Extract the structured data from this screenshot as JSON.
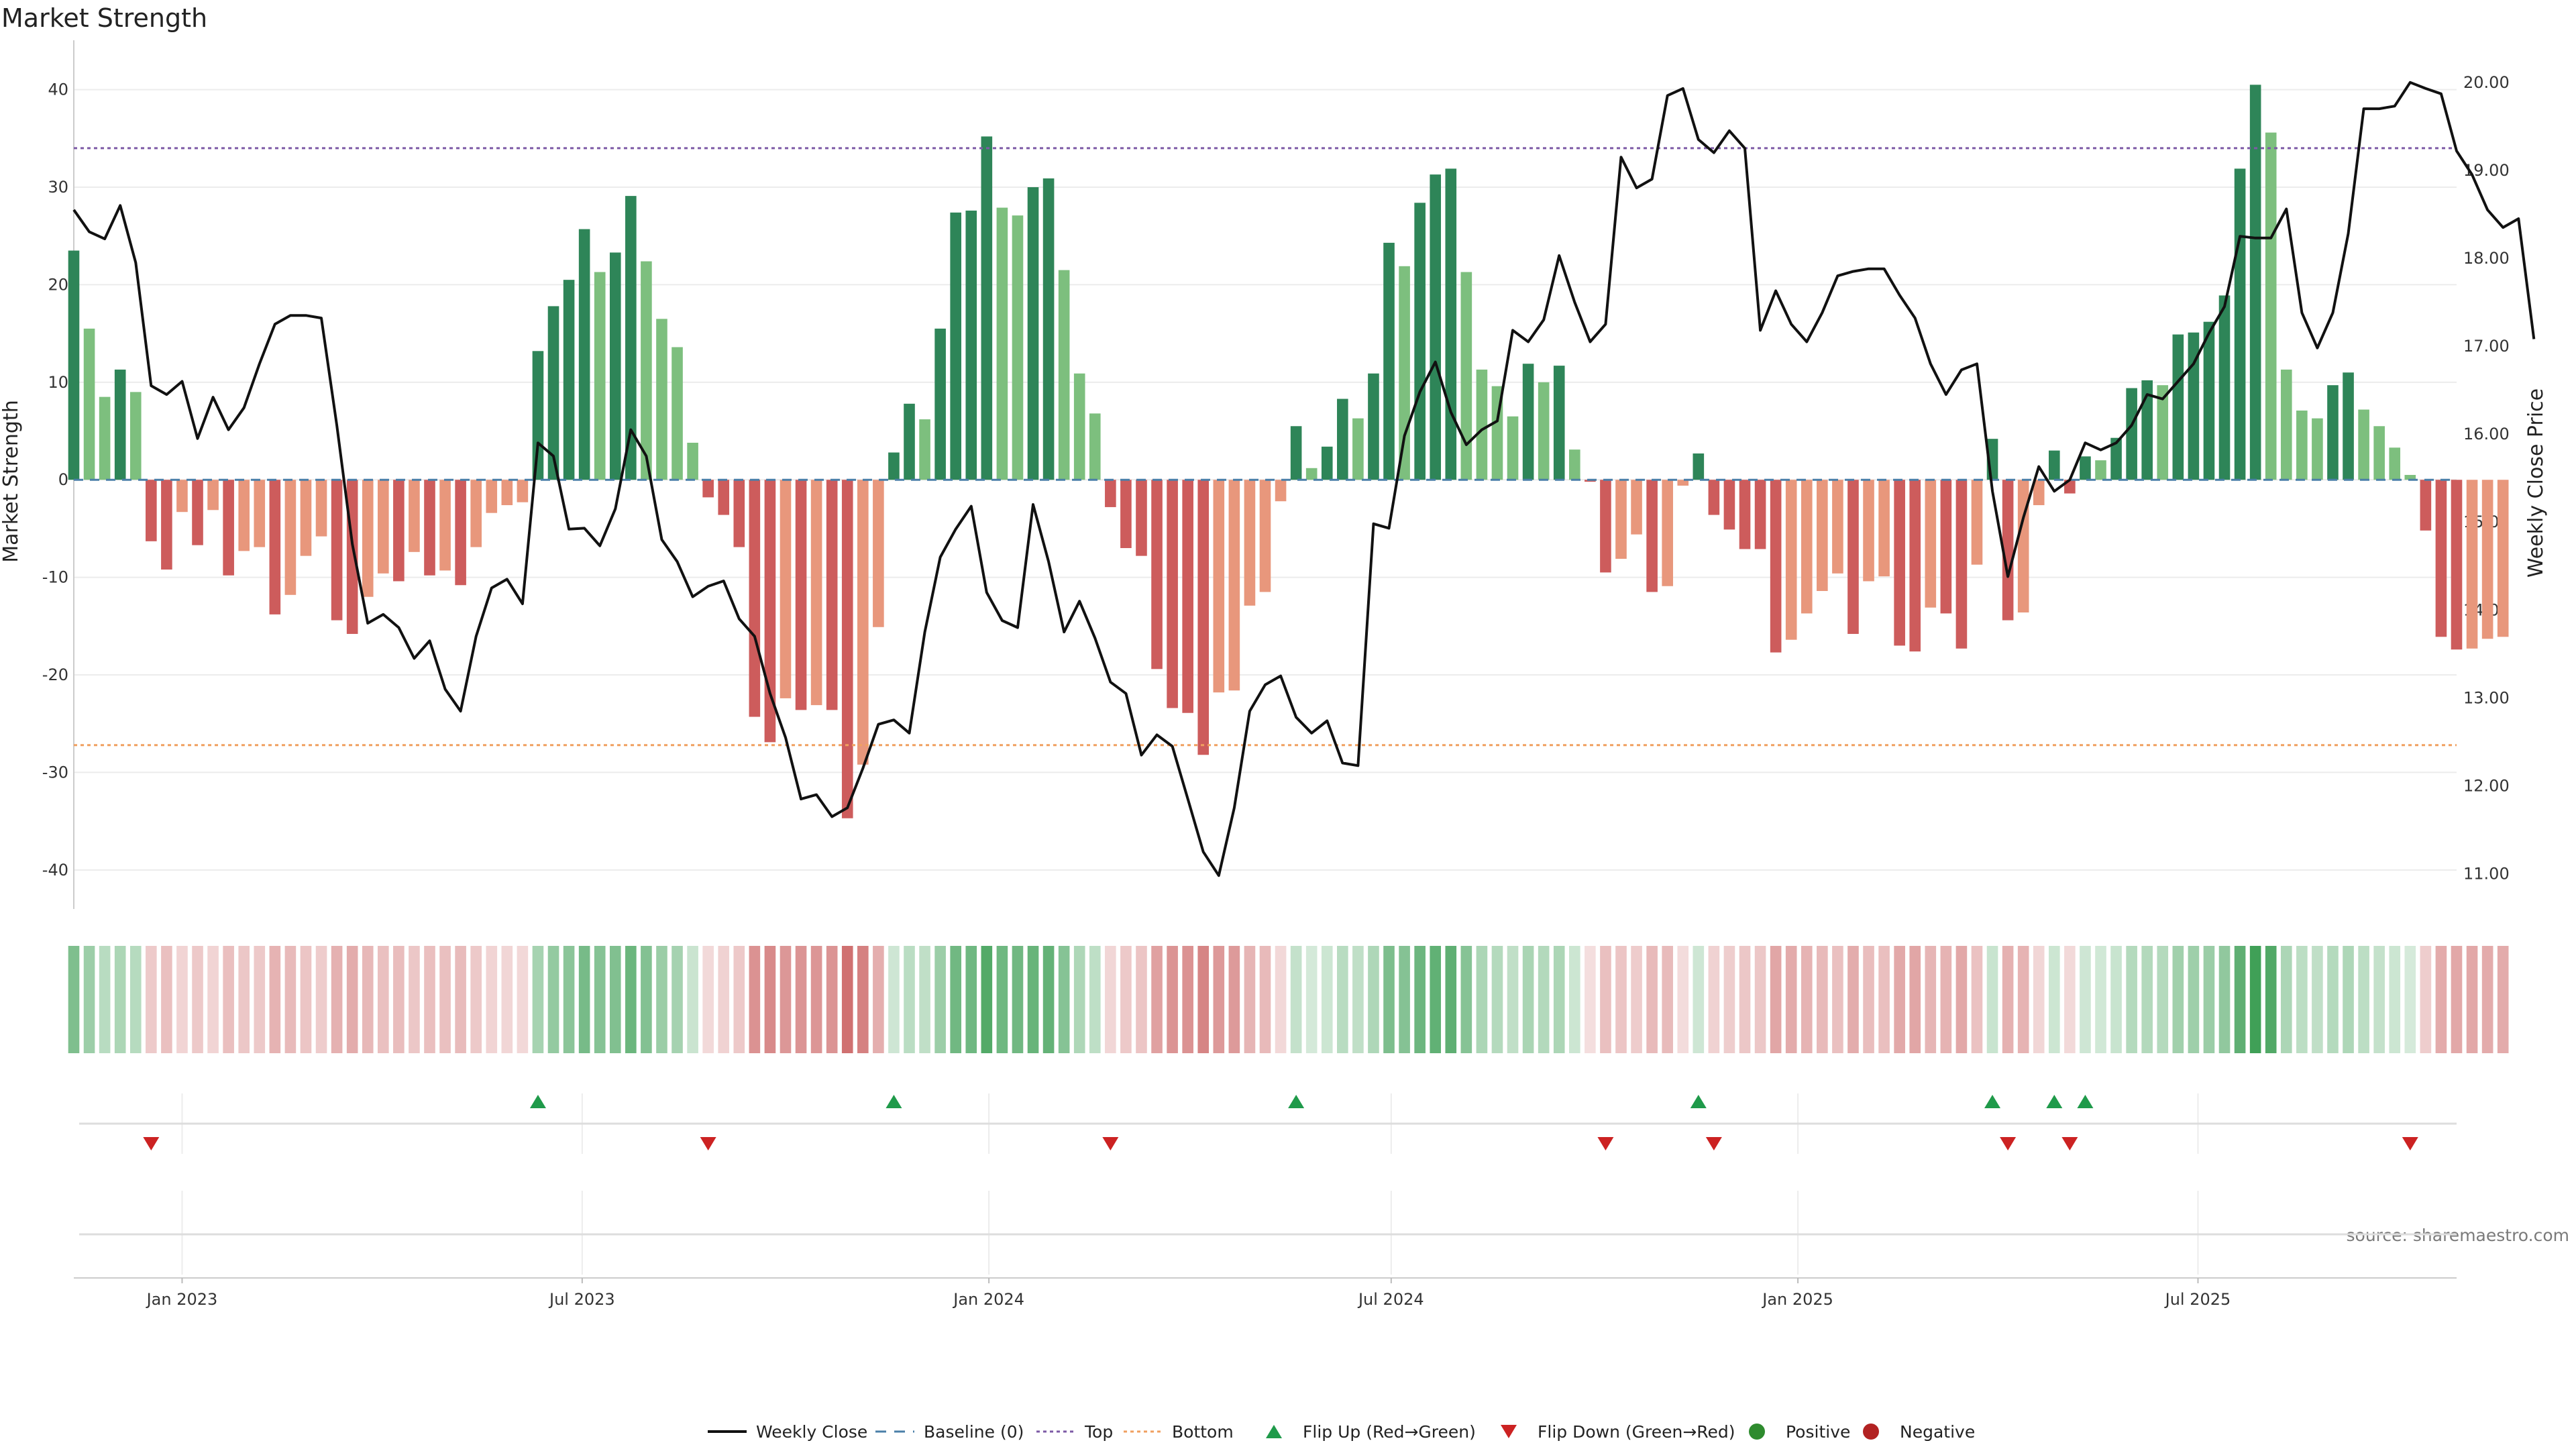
{
  "chart_data": {
    "type": "bar",
    "title": "Market Strength",
    "ylabel_left": "Market Strength",
    "ylabel_right": "Weekly Close Price",
    "source": "source: sharemaestro.com",
    "ylim": [
      -44,
      43
    ],
    "yticks": [
      40,
      30,
      20,
      10,
      0,
      -10,
      -20,
      -30,
      -40
    ],
    "ylim_right": [
      10.6,
      20.25
    ],
    "yticks_right": [
      "20.00",
      "19.00",
      "18.00",
      "17.00",
      "16.00",
      "15.00",
      "14.00",
      "13.00",
      "12.00",
      "11.00"
    ],
    "x_start": "2022-11-13",
    "x_end": "2025-10-26",
    "x_ticks": [
      {
        "date": "2023-01-01",
        "label": "Jan 2023"
      },
      {
        "date": "2023-07-01",
        "label": "Jul 2023"
      },
      {
        "date": "2024-01-01",
        "label": "Jan 2024"
      },
      {
        "date": "2024-07-01",
        "label": "Jul 2024"
      },
      {
        "date": "2025-01-01",
        "label": "Jan 2025"
      },
      {
        "date": "2025-07-01",
        "label": "Jul 2025"
      }
    ],
    "first_week": "2022-11-13",
    "week_step_days": 7,
    "strength": [
      23.5,
      15.5,
      8.5,
      11.3,
      9,
      -6.3,
      -9.2,
      -3.3,
      -6.7,
      -3.1,
      -9.8,
      -7.3,
      -6.9,
      -13.8,
      -11.8,
      -7.8,
      -5.8,
      -14.4,
      -15.8,
      -12,
      -9.6,
      -10.4,
      -7.4,
      -9.8,
      -9.3,
      -10.8,
      -6.9,
      -3.4,
      -2.6,
      -2.3,
      13.2,
      17.8,
      20.5,
      25.7,
      21.3,
      23.3,
      29.1,
      22.4,
      16.5,
      13.6,
      3.8,
      -1.8,
      -3.6,
      -6.9,
      -24.3,
      -26.9,
      -22.4,
      -23.6,
      -23.1,
      -23.6,
      -34.7,
      -29.2,
      -15.1,
      2.8,
      7.8,
      6.2,
      15.5,
      27.4,
      27.6,
      35.2,
      27.9,
      27.1,
      30,
      30.9,
      21.5,
      10.9,
      6.8,
      -2.8,
      -7,
      -7.8,
      -19.4,
      -23.4,
      -23.9,
      -28.2,
      -21.8,
      -21.6,
      -12.9,
      -11.5,
      -2.2,
      5.5,
      1.2,
      3.4,
      8.3,
      6.3,
      10.9,
      24.3,
      21.9,
      28.4,
      31.3,
      31.9,
      21.3,
      11.3,
      9.6,
      6.5,
      11.9,
      10,
      11.7,
      3.1,
      -0.2,
      -9.5,
      -8.1,
      -5.6,
      -11.5,
      -10.9,
      -0.6,
      2.7,
      -3.6,
      -5.1,
      -7.1,
      -7.1,
      -17.7,
      -16.4,
      -13.7,
      -11.4,
      -9.6,
      -15.8,
      -10.4,
      -9.9,
      -17,
      -17.6,
      -13.1,
      -13.7,
      -17.3,
      -8.7,
      4.2,
      -14.4,
      -13.6,
      -2.6,
      3,
      -1.4,
      2.4,
      2,
      4.3,
      9.4,
      10.2,
      9.7,
      14.9,
      15.1,
      16.2,
      18.9,
      31.9,
      40.5,
      35.6,
      11.3,
      7.1,
      6.3,
      9.7,
      11,
      7.2,
      5.5,
      3.3,
      0.5,
      -5.2,
      -16.1,
      -17.4,
      -17.3,
      -16.3,
      -16.1
    ],
    "weekly_close": [
      18.55,
      18.3,
      18.22,
      18.6,
      17.95,
      16.55,
      16.45,
      16.6,
      15.95,
      16.42,
      16.05,
      16.3,
      16.8,
      17.25,
      17.35,
      17.35,
      17.32,
      16.1,
      14.75,
      13.85,
      13.95,
      13.8,
      13.45,
      13.65,
      13.1,
      12.85,
      13.7,
      14.25,
      14.35,
      14.07,
      15.9,
      15.75,
      14.92,
      14.93,
      14.73,
      15.15,
      16.05,
      15.75,
      14.8,
      14.55,
      14.15,
      14.27,
      14.33,
      13.9,
      13.7,
      13.05,
      12.55,
      11.85,
      11.9,
      11.65,
      11.75,
      12.2,
      12.7,
      12.75,
      12.6,
      13.75,
      14.6,
      14.92,
      15.18,
      14.2,
      13.88,
      13.8,
      15.2,
      14.55,
      13.75,
      14.1,
      13.68,
      13.18,
      13.05,
      12.35,
      12.58,
      12.45,
      11.85,
      11.25,
      10.98,
      11.75,
      12.85,
      13.15,
      13.25,
      12.78,
      12.6,
      12.74,
      12.26,
      12.23,
      14.98,
      14.93,
      15.98,
      16.48,
      16.82,
      16.25,
      15.88,
      16.05,
      16.15,
      17.18,
      17.05,
      17.3,
      18.03,
      17.5,
      17.05,
      17.25,
      19.15,
      18.8,
      18.9,
      19.85,
      19.93,
      19.35,
      19.2,
      19.45,
      19.25,
      17.18,
      17.63,
      17.25,
      17.05,
      17.38,
      17.8,
      17.85,
      17.88,
      17.88,
      17.58,
      17.32,
      16.8,
      16.45,
      16.73,
      16.8,
      15.35,
      14.38,
      15.05,
      15.63,
      15.35,
      15.48,
      15.9,
      15.82,
      15.9,
      16.1,
      16.45,
      16.4,
      16.6,
      16.8,
      17.15,
      17.45,
      18.25,
      18.23,
      18.23,
      18.56,
      17.38,
      16.98,
      17.38,
      18.28,
      19.7,
      19.7,
      19.73,
      20.0,
      19.93,
      19.87,
      19.22,
      18.95,
      18.55,
      18.35,
      18.45,
      17.08
    ],
    "heat_strip": {
      "label": "strength-heat-strip",
      "note": "one cell per week, colour follows strength value"
    },
    "flip_up_weeks": [
      30,
      53,
      79,
      105,
      124,
      128,
      130
    ],
    "flip_down_weeks": [
      5,
      41,
      67,
      99,
      106,
      125,
      129,
      151
    ],
    "reference_lines": {
      "baseline": 0,
      "top": 34.0,
      "bottom": -27.2
    },
    "colors": {
      "pos_strong": "#2e8558",
      "pos_weak": "#7dbf7e",
      "neg_strong": "#cd5c5c",
      "neg_weak": "#e8977c",
      "price_line": "#111111",
      "baseline": "#4a7fa8",
      "top": "#7d5ba6",
      "bottom": "#f0a060",
      "flip_up": "#1f9a4a",
      "flip_down": "#cc2222",
      "positive_dot": "#2e8b2e",
      "negative_dot": "#b22222",
      "grid": "#ececec"
    },
    "legend": [
      {
        "key": "line",
        "label": "Weekly Close"
      },
      {
        "key": "baseline",
        "label": "Baseline (0)"
      },
      {
        "key": "top",
        "label": "Top"
      },
      {
        "key": "bottom",
        "label": "Bottom"
      },
      {
        "key": "flip_up",
        "label": "Flip Up (Red→Green)"
      },
      {
        "key": "flip_down",
        "label": "Flip Down (Green→Red)"
      },
      {
        "key": "positive",
        "label": "Positive"
      },
      {
        "key": "negative",
        "label": "Negative"
      }
    ]
  }
}
